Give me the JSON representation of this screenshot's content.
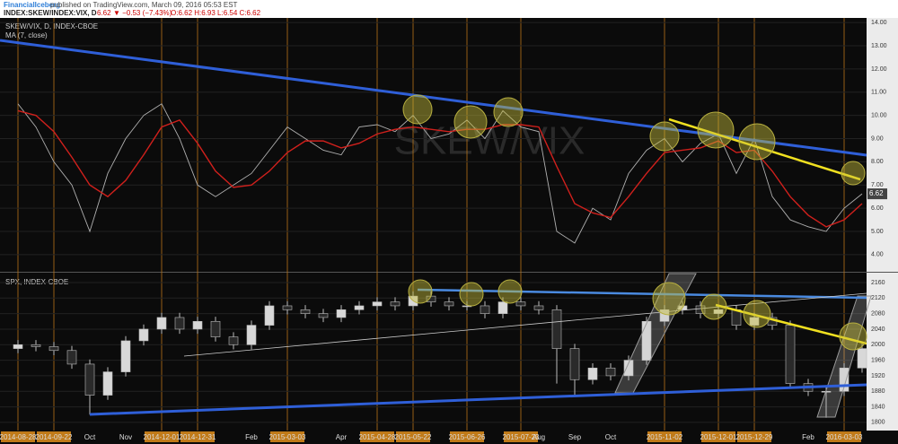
{
  "header": {
    "publisher": "FinancialIceberg",
    "published": "published on TradingView.com, March 09, 2016 05:53 EST",
    "symbol": "INDEX:SKEW/INDEX:VIX, D",
    "quote": "6.62",
    "change": "▼ −0.53 (−7.43%)",
    "ohlc": "O:6.62 H:6.93 L:6.54 C:6.62"
  },
  "chart_data": [
    {
      "type": "line",
      "watermark": "SKEW/VIX",
      "title": "SKEW/VIX, D, INDEX-CBOE",
      "ylim": [
        3.3,
        14.2
      ],
      "yticks": [
        {
          "value": 4,
          "label": "4.00"
        },
        {
          "value": 5,
          "label": "5.00"
        },
        {
          "value": 6,
          "label": "6.00"
        },
        {
          "value": 7,
          "label": "7.00"
        },
        {
          "value": 8,
          "label": "8.00"
        },
        {
          "value": 9,
          "label": "9.00"
        },
        {
          "value": 10,
          "label": "10.00"
        },
        {
          "value": 11,
          "label": "11.00"
        },
        {
          "value": 12,
          "label": "12.00"
        },
        {
          "value": 13,
          "label": "13.00"
        },
        {
          "value": 14,
          "label": "14.00"
        }
      ],
      "series": [
        {
          "name": "SKEW/VIX, D, INDEX-CBOE",
          "color": "#b0b0b0",
          "values": [
            10.5,
            9.5,
            8,
            7,
            5,
            7.5,
            9,
            10,
            10.5,
            9,
            7,
            6.5,
            7,
            7.5,
            8.5,
            9.5,
            9,
            8.5,
            8.3,
            9.5,
            9.6,
            9.3,
            10,
            9,
            9.2,
            9.8,
            9,
            10.2,
            9.5,
            9.3,
            5,
            4.5,
            6,
            5.5,
            7.5,
            8.5,
            9,
            8,
            8.8,
            9.2,
            7.5,
            9,
            6.5,
            5.5,
            5.2,
            5,
            6,
            6.62
          ]
        },
        {
          "name": "MA (7, close)",
          "color": "#d0201c",
          "values": [
            10.2,
            10.0,
            9.3,
            8.2,
            7.0,
            6.5,
            7.2,
            8.3,
            9.5,
            9.8,
            8.8,
            7.6,
            6.9,
            7.0,
            7.6,
            8.4,
            8.9,
            8.9,
            8.6,
            8.8,
            9.2,
            9.4,
            9.5,
            9.4,
            9.3,
            9.4,
            9.4,
            9.6,
            9.6,
            9.5,
            7.8,
            6.2,
            5.8,
            5.6,
            6.5,
            7.5,
            8.4,
            8.5,
            8.6,
            8.9,
            8.4,
            8.5,
            7.6,
            6.5,
            5.7,
            5.2,
            5.5,
            6.2
          ]
        }
      ]
    },
    {
      "type": "candlestick",
      "title": "SPX, INDEX-CBOE",
      "up_color": "#d8d8d8",
      "down_color": "#2a2a2a",
      "categories": [
        "2014-08-28",
        null,
        "2014-09-22",
        null,
        "Oct",
        null,
        "Nov",
        null,
        "2014-12-01",
        null,
        "2014-12-31",
        null,
        null,
        "Feb",
        null,
        "2015-03-03",
        null,
        null,
        "Apr",
        null,
        "2015-04-28",
        null,
        "2015-05-22",
        null,
        null,
        "2015-06-26",
        null,
        null,
        "2015-07-23",
        "Aug",
        null,
        "Sep",
        null,
        "Oct",
        null,
        null,
        "2015-11-02",
        null,
        null,
        "2015-12-01",
        null,
        "2015-12-29",
        null,
        null,
        "Feb",
        null,
        "2016-03-03",
        null
      ],
      "ylim": [
        1779,
        2183
      ],
      "yticks": [
        1800,
        1840,
        1880,
        1920,
        1960,
        2000,
        2040,
        2080,
        2120,
        2160
      ],
      "open": [
        1990,
        2000,
        1995,
        1985,
        1950,
        1870,
        1930,
        2010,
        2040,
        2070,
        2040,
        2060,
        2020,
        2000,
        2050,
        2100,
        2090,
        2080,
        2070,
        2090,
        2100,
        2110,
        2100,
        2125,
        2110,
        2100,
        2100,
        2080,
        2110,
        2100,
        2090,
        1990,
        1910,
        1940,
        1920,
        1960,
        2060,
        2090,
        2100,
        2080,
        2090,
        2050,
        2070,
        2050,
        1900,
        1880,
        1880,
        1940
      ],
      "high": [
        2012,
        2012,
        2007,
        1997,
        1962,
        1942,
        2022,
        2052,
        2082,
        2082,
        2072,
        2072,
        2032,
        2062,
        2112,
        2112,
        2102,
        2092,
        2102,
        2112,
        2122,
        2122,
        2137,
        2137,
        2122,
        2112,
        2112,
        2122,
        2122,
        2112,
        2102,
        2002,
        1952,
        1952,
        1972,
        2072,
        2102,
        2112,
        2112,
        2102,
        2102,
        2082,
        2082,
        2062,
        1912,
        1892,
        1952,
        2002
      ],
      "low": [
        1978,
        1983,
        1973,
        1938,
        1820,
        1858,
        1918,
        1998,
        2028,
        2028,
        2028,
        2008,
        1988,
        1988,
        2038,
        2078,
        2068,
        2058,
        2058,
        2078,
        2088,
        2088,
        2088,
        2098,
        2088,
        2088,
        2068,
        2068,
        2088,
        2078,
        1900,
        1870,
        1898,
        1908,
        1908,
        1948,
        2048,
        2078,
        2068,
        2068,
        2038,
        2038,
        2038,
        1888,
        1868,
        1812,
        1868,
        1928
      ],
      "close": [
        2000,
        1995,
        1985,
        1950,
        1870,
        1930,
        2010,
        2040,
        2070,
        2040,
        2060,
        2020,
        2000,
        2050,
        2100,
        2090,
        2080,
        2070,
        2090,
        2100,
        2110,
        2100,
        2125,
        2110,
        2100,
        2100,
        2080,
        2110,
        2100,
        2090,
        1990,
        1910,
        1940,
        1920,
        1960,
        2060,
        2090,
        2100,
        2080,
        2090,
        2050,
        2070,
        2050,
        1900,
        1880,
        1880,
        1940,
        1990
      ]
    }
  ]
}
